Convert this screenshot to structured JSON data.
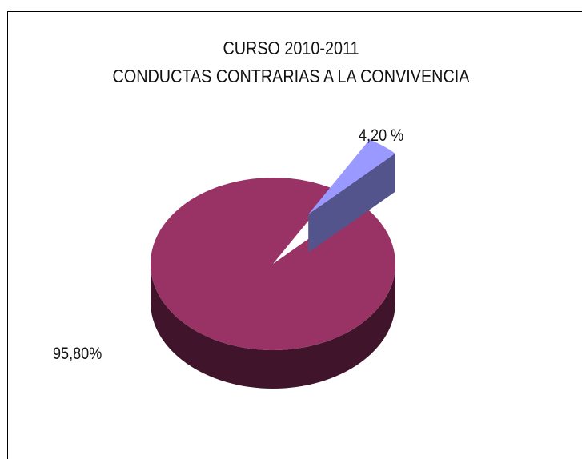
{
  "chart_data": {
    "type": "pie",
    "style": "3d-exploded",
    "title": "CURSO 2010-2011",
    "subtitle": "CONDUCTAS CONTRARIAS A LA CONVIVENCIA",
    "slices": [
      {
        "value": 95.8,
        "label": "95,80%",
        "color": "#993366"
      },
      {
        "value": 4.2,
        "label": "4,20 %",
        "color": "#9999ff",
        "exploded": true
      }
    ]
  }
}
